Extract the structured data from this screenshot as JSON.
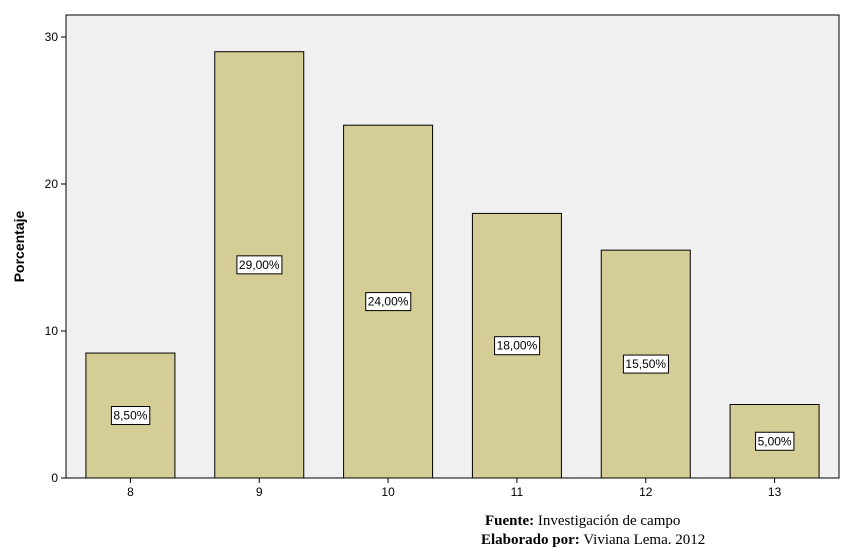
{
  "chart_data": {
    "type": "bar",
    "categories": [
      "8",
      "9",
      "10",
      "11",
      "12",
      "13"
    ],
    "values": [
      8.5,
      29.0,
      24.0,
      18.0,
      15.5,
      5.0
    ],
    "data_labels": [
      "8,50%",
      "29,00%",
      "24,00%",
      "18,00%",
      "15,50%",
      "5,00%"
    ],
    "title": "",
    "xlabel": "",
    "ylabel": "Porcentaje",
    "ylim": [
      0,
      30
    ],
    "yticks": [
      "0",
      "10",
      "20",
      "30"
    ],
    "grid": false,
    "colors": {
      "bar_fill": "#d4cd96",
      "bar_stroke": "#000000",
      "plot_background": "#f0f0f0"
    }
  },
  "footer": {
    "source_label": "Fuente:",
    "source_value": " Investigación de campo",
    "author_label": "Elaborado por:",
    "author_value": " Viviana Lema. 2012"
  }
}
